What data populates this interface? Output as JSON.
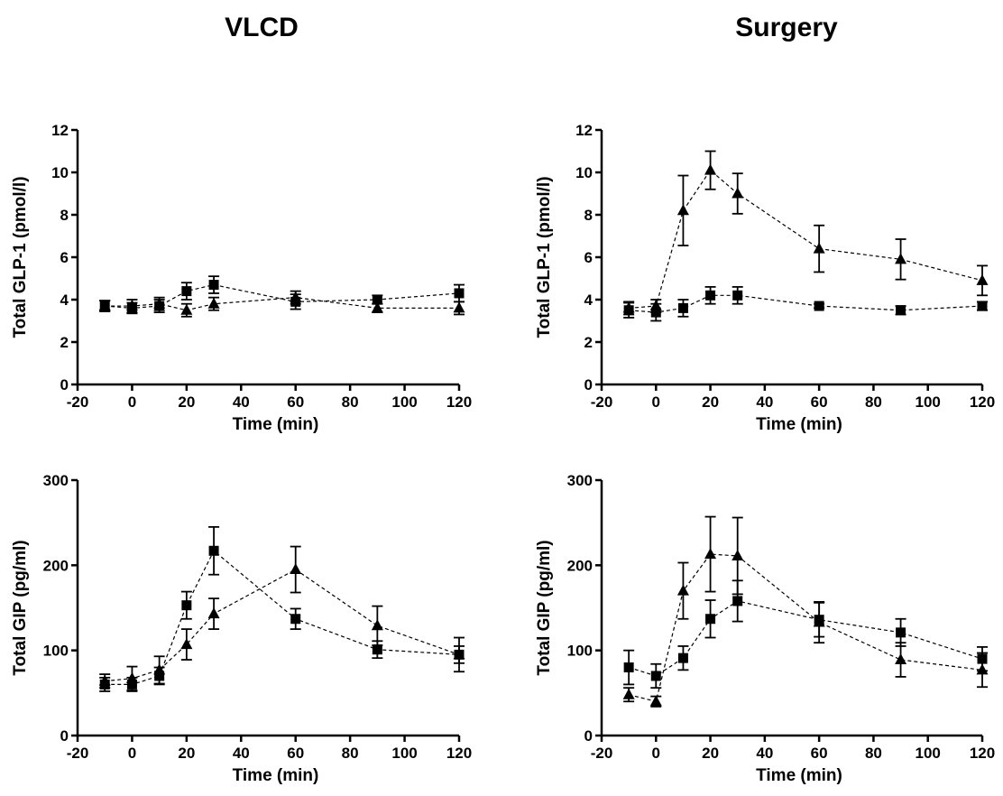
{
  "titles": {
    "left": "VLCD",
    "right": "Surgery"
  },
  "chart_data": [
    {
      "type": "line",
      "panel": "VLCD",
      "xlabel": "Time (min)",
      "ylabel": "Total GLP-1 (pmol/l)",
      "xlim": [
        -20,
        120
      ],
      "ylim": [
        0,
        12
      ],
      "xticks": [
        -20,
        0,
        20,
        40,
        60,
        80,
        100,
        120
      ],
      "yticks": [
        0,
        2,
        4,
        6,
        8,
        10,
        12
      ],
      "x": [
        -10,
        0,
        10,
        20,
        30,
        60,
        90,
        120
      ],
      "series": [
        {
          "marker": "square",
          "values": [
            3.7,
            3.6,
            3.7,
            4.4,
            4.7,
            3.9,
            4.0,
            4.3
          ],
          "err": [
            0.25,
            0.25,
            0.3,
            0.4,
            0.4,
            0.35,
            0.2,
            0.4
          ]
        },
        {
          "marker": "triangle",
          "values": [
            3.7,
            3.7,
            3.8,
            3.5,
            3.8,
            4.1,
            3.6,
            3.6
          ],
          "err": [
            0.25,
            0.3,
            0.3,
            0.3,
            0.3,
            0.3,
            0.2,
            0.3
          ]
        }
      ]
    },
    {
      "type": "line",
      "panel": "Surgery",
      "xlabel": "Time (min)",
      "ylabel": "Total GLP-1 (pmol/l)",
      "xlim": [
        -20,
        120
      ],
      "ylim": [
        0,
        12
      ],
      "xticks": [
        -20,
        0,
        20,
        40,
        60,
        80,
        100,
        120
      ],
      "yticks": [
        0,
        2,
        4,
        6,
        8,
        10,
        12
      ],
      "x": [
        -10,
        0,
        10,
        20,
        30,
        60,
        90,
        120
      ],
      "series": [
        {
          "marker": "square",
          "values": [
            3.5,
            3.4,
            3.6,
            4.2,
            4.2,
            3.7,
            3.5,
            3.7
          ],
          "err": [
            0.35,
            0.4,
            0.4,
            0.4,
            0.4,
            0.1,
            0.2,
            0.2
          ]
        },
        {
          "marker": "triangle",
          "values": [
            3.6,
            3.7,
            8.2,
            10.1,
            9.0,
            6.4,
            5.9,
            4.9
          ],
          "err": [
            0.3,
            0.3,
            1.65,
            0.9,
            0.95,
            1.1,
            0.95,
            0.7
          ]
        }
      ]
    },
    {
      "type": "line",
      "panel": "VLCD",
      "xlabel": "Time (min)",
      "ylabel": "Total GIP (pg/ml)",
      "xlim": [
        -20,
        120
      ],
      "ylim": [
        0,
        300
      ],
      "xticks": [
        -20,
        0,
        20,
        40,
        60,
        80,
        100,
        120
      ],
      "yticks": [
        0,
        100,
        200,
        300
      ],
      "x": [
        -10,
        0,
        10,
        20,
        30,
        60,
        90,
        120
      ],
      "series": [
        {
          "marker": "square",
          "values": [
            60,
            60,
            70,
            153,
            217,
            137,
            101,
            95
          ],
          "err": [
            8,
            8,
            10,
            16,
            28,
            12,
            10,
            10
          ]
        },
        {
          "marker": "triangle",
          "values": [
            64,
            67,
            77,
            107,
            143,
            195,
            129,
            95
          ],
          "err": [
            8,
            14,
            16,
            18,
            18,
            27,
            23,
            20
          ]
        }
      ]
    },
    {
      "type": "line",
      "panel": "Surgery",
      "xlabel": "Time (min)",
      "ylabel": "Total GIP (pg/ml)",
      "xlim": [
        -20,
        120
      ],
      "ylim": [
        0,
        300
      ],
      "xticks": [
        -20,
        0,
        20,
        40,
        60,
        80,
        100,
        120
      ],
      "yticks": [
        0,
        100,
        200,
        300
      ],
      "x": [
        -10,
        0,
        10,
        20,
        30,
        60,
        90,
        120
      ],
      "series": [
        {
          "marker": "square",
          "values": [
            80,
            70,
            91,
            137,
            158,
            136,
            121,
            90
          ],
          "err": [
            20,
            14,
            14,
            22,
            24,
            20,
            16,
            14
          ]
        },
        {
          "marker": "triangle",
          "values": [
            48,
            40,
            170,
            213,
            211,
            133,
            89,
            77
          ],
          "err": [
            8,
            6,
            33,
            44,
            45,
            24,
            20,
            20
          ]
        }
      ]
    }
  ]
}
